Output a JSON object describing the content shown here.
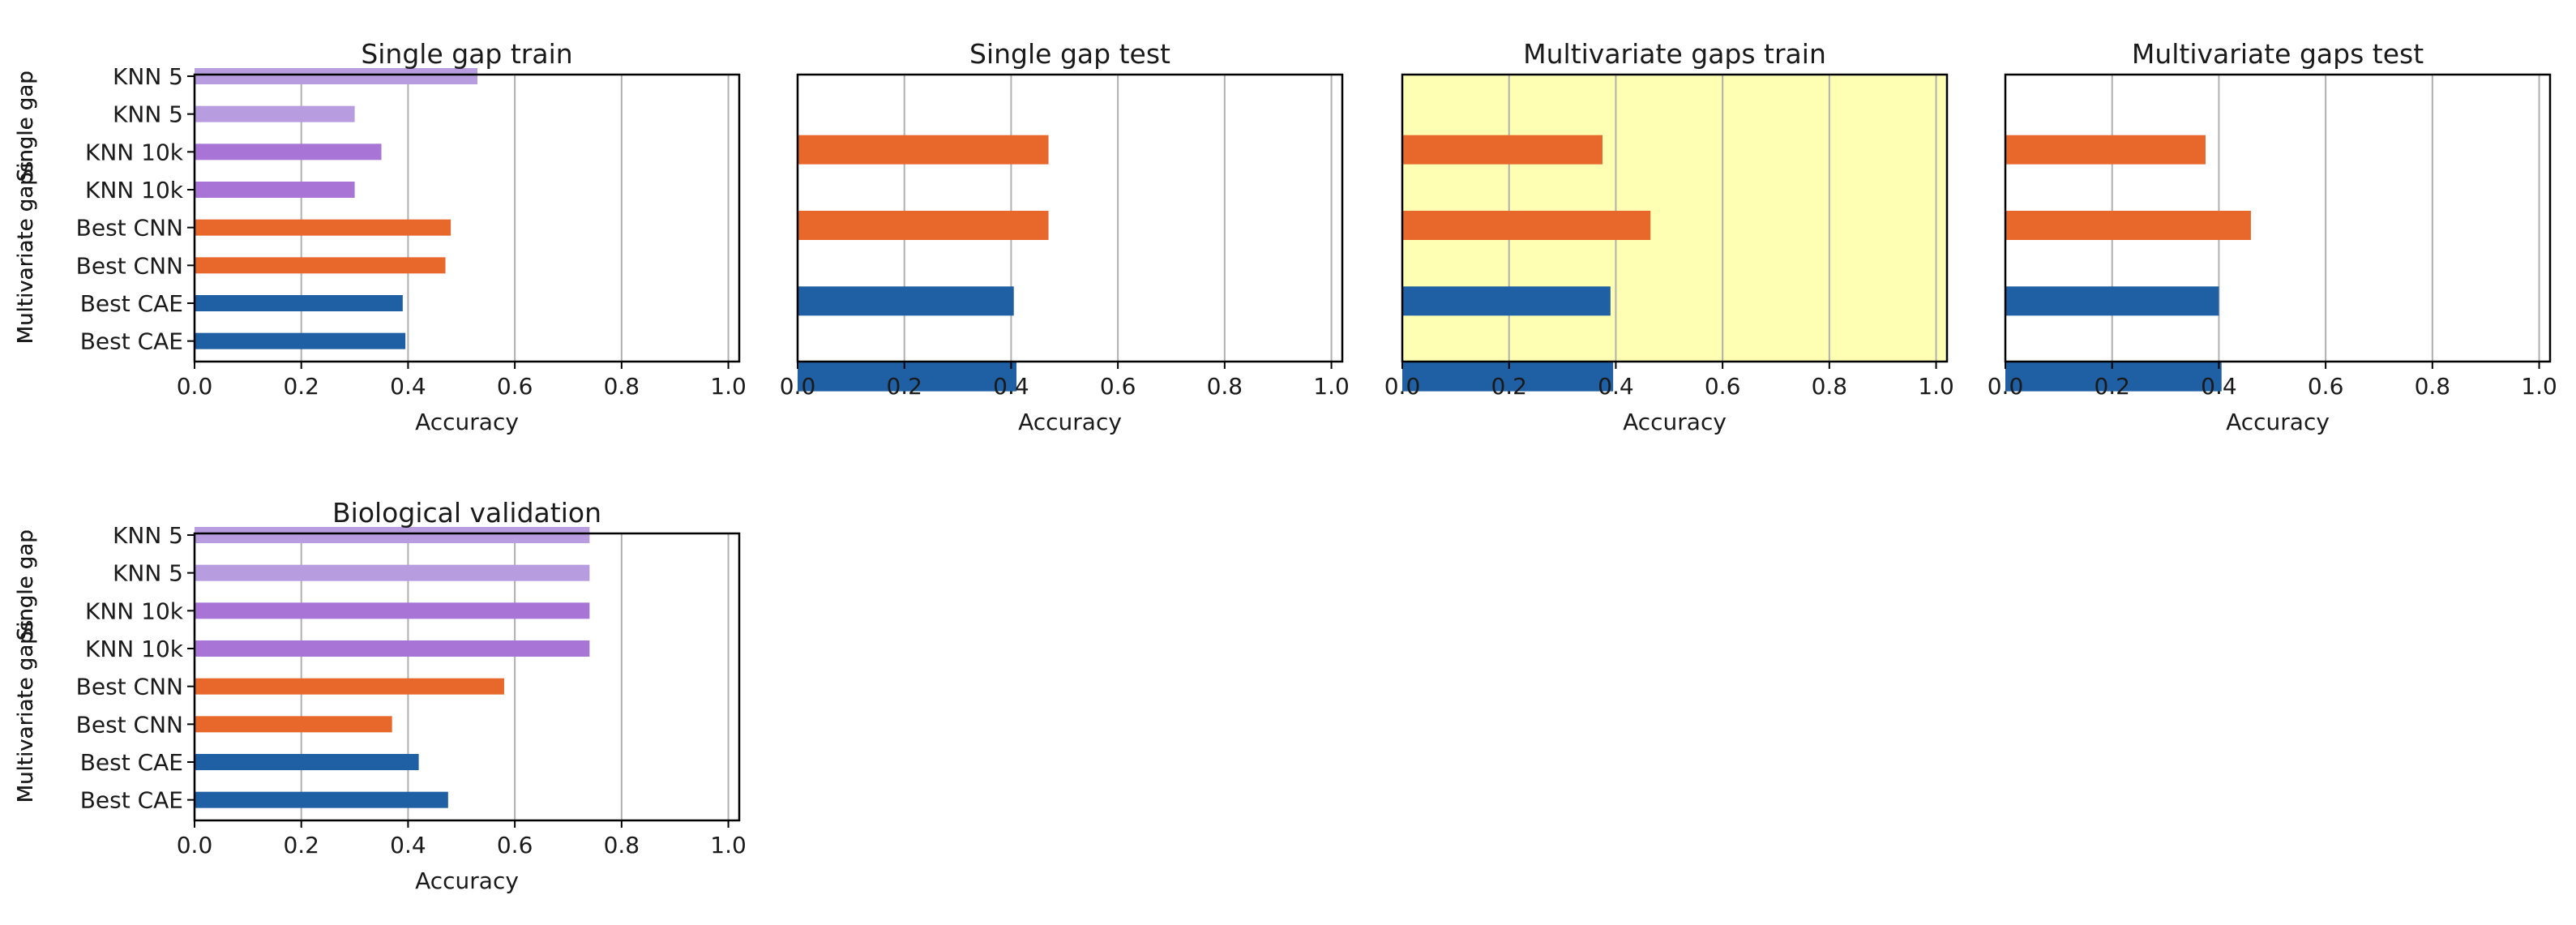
{
  "colors": {
    "knn5": "#b89ce0",
    "knn10k": "#a874d6",
    "cnn": "#e8672a",
    "cae": "#1f5fa3",
    "highlight_bg": "#ffffb3",
    "grid": "#b0b0b0",
    "axis": "#000000"
  },
  "chart_data": [
    {
      "type": "bar",
      "orientation": "horizontal",
      "title": "Single gap train",
      "xlabel": "Accuracy",
      "xlim": [
        0,
        1
      ],
      "xticks": [
        "0.0",
        "0.2",
        "0.4",
        "0.6",
        "0.8",
        "1.0"
      ],
      "xtick_values": [
        0,
        0.2,
        0.4,
        0.6,
        0.8,
        1.0
      ],
      "show_yticklabels": true,
      "highlight": false,
      "categories": [
        "KNN 5",
        "KNN 5",
        "KNN 10k",
        "KNN 10k",
        "Best CNN",
        "Best CNN",
        "Best CAE",
        "Best CAE"
      ],
      "values": [
        0.53,
        0.3,
        0.35,
        0.3,
        0.48,
        0.47,
        0.39,
        0.395
      ],
      "colors": [
        "knn5",
        "knn5",
        "knn10k",
        "knn10k",
        "cnn",
        "cnn",
        "cae",
        "cae"
      ]
    },
    {
      "type": "bar",
      "orientation": "horizontal",
      "title": "Single gap test",
      "xlabel": "Accuracy",
      "xlim": [
        0,
        1
      ],
      "xticks": [
        "0.0",
        "0.2",
        "0.4",
        "0.6",
        "0.8",
        "1.0"
      ],
      "xtick_values": [
        0,
        0.2,
        0.4,
        0.6,
        0.8,
        1.0
      ],
      "show_yticklabels": false,
      "highlight": false,
      "categories": [
        "KNN 5",
        "KNN 5",
        "KNN 10k",
        "KNN 10k",
        "Best CNN",
        "Best CNN",
        "Best CAE",
        "Best CAE"
      ],
      "values": [
        null,
        0.47,
        null,
        0.47,
        null,
        0.405,
        null,
        0.41
      ],
      "colors": [
        "knn5",
        "cnn",
        "knn10k",
        "cnn",
        "cnn",
        "cae",
        "cae",
        "cae"
      ]
    },
    {
      "type": "bar",
      "orientation": "horizontal",
      "title": "Multivariate gaps train",
      "xlabel": "Accuracy",
      "xlim": [
        0,
        1
      ],
      "xticks": [
        "0.0",
        "0.2",
        "0.4",
        "0.6",
        "0.8",
        "1.0"
      ],
      "xtick_values": [
        0,
        0.2,
        0.4,
        0.6,
        0.8,
        1.0
      ],
      "show_yticklabels": false,
      "highlight": true,
      "categories": [
        "KNN 5",
        "KNN 5",
        "KNN 10k",
        "KNN 10k",
        "Best CNN",
        "Best CNN",
        "Best CAE",
        "Best CAE"
      ],
      "values": [
        null,
        0.375,
        null,
        0.465,
        null,
        0.39,
        null,
        0.395
      ],
      "colors": [
        "knn5",
        "cnn",
        "knn10k",
        "cnn",
        "cnn",
        "cae",
        "cae",
        "cae"
      ]
    },
    {
      "type": "bar",
      "orientation": "horizontal",
      "title": "Multivariate gaps test",
      "xlabel": "Accuracy",
      "xlim": [
        0,
        1
      ],
      "xticks": [
        "0.0",
        "0.2",
        "0.4",
        "0.6",
        "0.8",
        "1.0"
      ],
      "xtick_values": [
        0,
        0.2,
        0.4,
        0.6,
        0.8,
        1.0
      ],
      "show_yticklabels": false,
      "highlight": false,
      "categories": [
        "KNN 5",
        "KNN 5",
        "KNN 10k",
        "KNN 10k",
        "Best CNN",
        "Best CNN",
        "Best CAE",
        "Best CAE"
      ],
      "values": [
        null,
        0.375,
        null,
        0.46,
        null,
        0.4,
        null,
        0.405
      ],
      "colors": [
        "knn5",
        "cnn",
        "knn10k",
        "cnn",
        "cnn",
        "cae",
        "cae",
        "cae"
      ]
    },
    {
      "type": "bar",
      "orientation": "horizontal",
      "title": "Biological validation",
      "xlabel": "Accuracy",
      "xlim": [
        0,
        1
      ],
      "xticks": [
        "0.0",
        "0.2",
        "0.4",
        "0.6",
        "0.8",
        "1.0"
      ],
      "xtick_values": [
        0,
        0.2,
        0.4,
        0.6,
        0.8,
        1.0
      ],
      "show_yticklabels": true,
      "highlight": false,
      "categories": [
        "KNN 5",
        "KNN 5",
        "KNN 10k",
        "KNN 10k",
        "Best CNN",
        "Best CNN",
        "Best CAE",
        "Best CAE"
      ],
      "values": [
        0.74,
        0.74,
        0.74,
        0.74,
        0.58,
        0.37,
        0.42,
        0.475
      ],
      "colors": [
        "knn5",
        "knn5",
        "knn10k",
        "knn10k",
        "cnn",
        "cnn",
        "cae",
        "cae"
      ]
    }
  ],
  "ylabel_overlap": [
    "Single gap",
    "Multivariate gaps",
    "Single gap",
    "Multivariate gaps",
    "Single gap",
    "Multivariate gaps",
    "Single gap",
    "Multivariate gaps"
  ]
}
